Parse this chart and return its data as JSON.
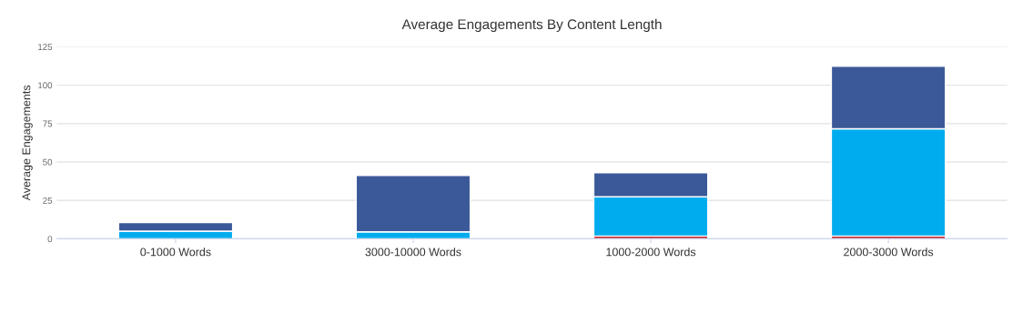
{
  "chart_data": {
    "type": "bar",
    "title": "Average Engagements By Content Length",
    "ylabel": "Average Engagements",
    "categories": [
      "0-1000 Words",
      "3000-10000 Words",
      "1000-2000 Words",
      "2000-3000 Words"
    ],
    "stacked": true,
    "ylim": [
      0,
      125
    ],
    "yticks": [
      0,
      25,
      50,
      75,
      100,
      125
    ],
    "grid": "y",
    "series": [
      {
        "color": "#c8232c",
        "values": [
          null,
          null,
          1.8,
          1.8
        ]
      },
      {
        "color": "#00acee",
        "values": [
          5,
          4.5,
          25.5,
          69.8
        ]
      },
      {
        "color": "#3b5998",
        "values": [
          5.5,
          36.8,
          15.7,
          40.7
        ]
      }
    ]
  }
}
